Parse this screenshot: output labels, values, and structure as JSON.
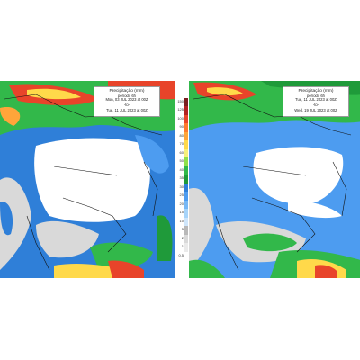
{
  "left_panel": {
    "title": "Precipitação (mm)",
    "subtitle": "período 6h",
    "date_from": "Mon, 03 JUL 2023 at 00Z",
    "separator": "-to-",
    "date_to": "Tue, 11 JUL 2023 at 00Z"
  },
  "right_panel": {
    "title": "Precipitação (mm)",
    "subtitle": "período 6h",
    "date_from": "Tue, 11 JUL 2023 at 00Z",
    "separator": "-to-",
    "date_to": "Wed, 19 JUL 2023 at 00Z"
  },
  "colorbar": {
    "labels": [
      "150",
      "125",
      "100",
      "90",
      "80",
      "70",
      "60",
      "50",
      "40",
      "35",
      "30",
      "25",
      "20",
      "15",
      "10",
      "5",
      "2",
      "1",
      "0.5"
    ],
    "colors": [
      "#7a1f1f",
      "#b22222",
      "#e8442a",
      "#ff7a2e",
      "#ffa53a",
      "#ffd94a",
      "#f5f07a",
      "#8fe04a",
      "#32b84a",
      "#1f9a3a",
      "#2f7fd8",
      "#4d9cf0",
      "#78b8f5",
      "#a6d4fa",
      "#cfe6fb",
      "#b8b8b8",
      "#d9d9d9",
      "#eaeaea",
      "#ffffff"
    ]
  }
}
